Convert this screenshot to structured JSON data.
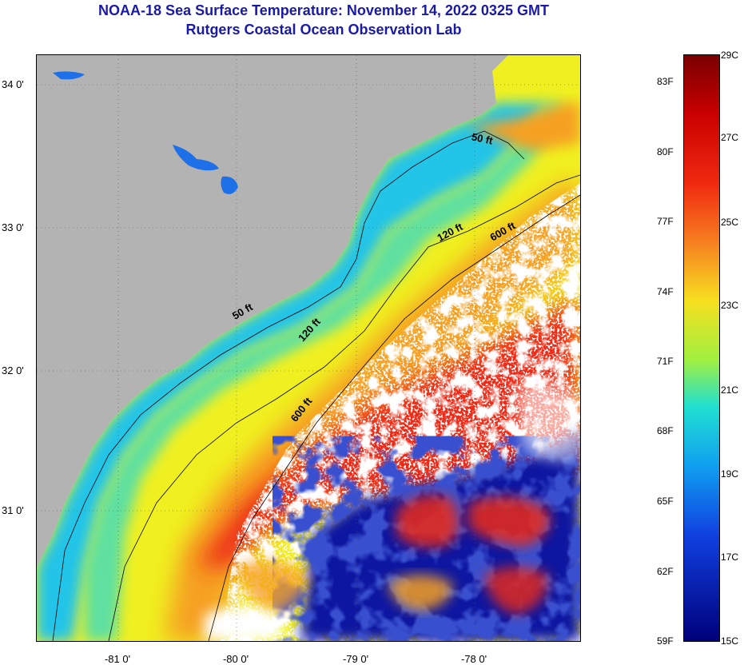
{
  "header": {
    "title_line1": "NOAA-18 Sea Surface Temperature:  November 14, 2022 0325 GMT",
    "title_line2": "Rutgers Coastal Ocean Observation Lab"
  },
  "map": {
    "lat_labels": [
      "34 0'",
      "33 0'",
      "32 0'",
      "31 0'"
    ],
    "lon_labels": [
      "-81 0'",
      "-80 0'",
      "-79 0'",
      "-78 0'"
    ],
    "depth_labels": [
      "50 ft",
      "120 ft",
      "600 ft",
      "50 ft",
      "120 ft",
      "600 ft"
    ],
    "colors": {
      "land": "#b3b3b3",
      "cloud": "#ffffff",
      "nearshore": "#1fb8f0",
      "shelf": "#f0f020",
      "gulfstream": "#ee2a12",
      "cold": "#0a14a0"
    }
  },
  "colorbar": {
    "fahrenheit_labels": [
      "83F",
      "80F",
      "77F",
      "74F",
      "71F",
      "68F",
      "65F",
      "62F",
      "59F"
    ],
    "celsius_labels": [
      "29C",
      "27C",
      "25C",
      "23C",
      "21C",
      "19C",
      "17C",
      "15C"
    ],
    "range_f": [
      59,
      84.2
    ],
    "range_c": [
      15,
      29
    ]
  }
}
